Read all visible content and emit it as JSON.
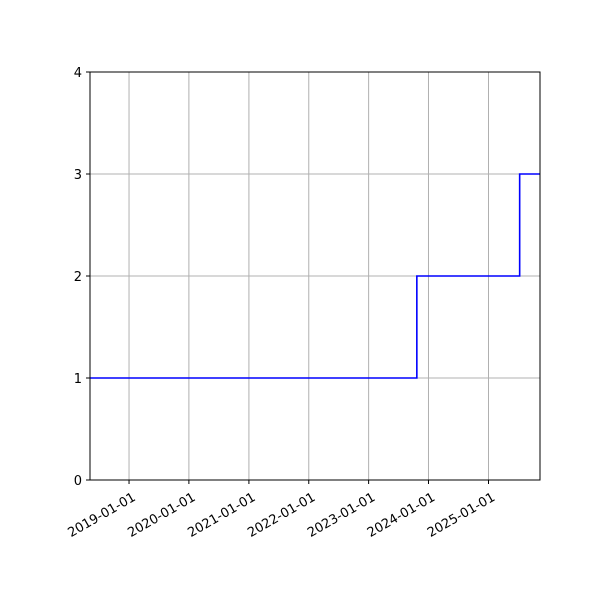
{
  "chart_data": {
    "type": "line",
    "step": "post",
    "title": "",
    "xlabel": "",
    "ylabel": "",
    "x_type": "date",
    "xlim": [
      "2018-05-08",
      "2025-11-11"
    ],
    "ylim": [
      0,
      4
    ],
    "x_ticks": [
      "2019-01-01",
      "2020-01-01",
      "2021-01-01",
      "2022-01-01",
      "2023-01-01",
      "2024-01-01",
      "2025-01-01"
    ],
    "y_ticks": [
      0,
      1,
      2,
      3,
      4
    ],
    "grid": true,
    "color": "#0000ff",
    "series": [
      {
        "x": [
          "2018-05-08",
          "2023-10-22",
          "2025-07-10",
          "2025-11-11"
        ],
        "y": [
          1,
          2,
          3,
          3
        ]
      }
    ]
  }
}
